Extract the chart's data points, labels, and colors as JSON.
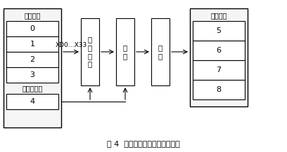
{
  "title": "图 4  整数变换量化模块硬件结构",
  "title_fontsize": 8,
  "bg_color": "#ffffff",
  "left_group_label": "寄存器组",
  "left_ctrl_label": "控制寄存器",
  "left_regs": [
    "0",
    "1",
    "2",
    "3"
  ],
  "ctrl_reg": "4",
  "right_group_label": "寄存器组",
  "right_regs": [
    "5",
    "6",
    "7",
    "8"
  ],
  "block0_text": "整\n数\n变\n换",
  "block1_text": "量\n化",
  "block2_text": "输\n出",
  "arrow_label": "XD0…X33",
  "box_color": "#ffffff",
  "border_color": "#000000",
  "text_color": "#000000",
  "font_size": 7,
  "label_font_size": 7,
  "num_font_size": 8
}
